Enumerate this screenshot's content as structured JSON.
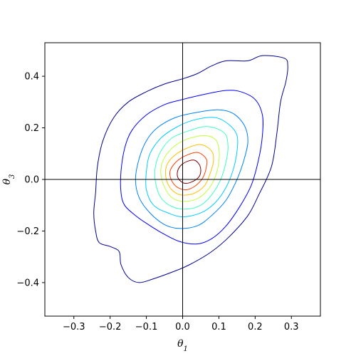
{
  "chart_data": {
    "type": "contour",
    "title": "",
    "xlabel": "θ1",
    "ylabel": "θ3",
    "xlabel_main": "θ",
    "xlabel_sub": "1",
    "ylabel_main": "θ",
    "ylabel_sub": "3",
    "xlim": [
      -0.38,
      0.38
    ],
    "ylim": [
      -0.53,
      0.53
    ],
    "xticks": [
      -0.3,
      -0.2,
      -0.1,
      0.0,
      0.1,
      0.2,
      0.3
    ],
    "xtick_labels": [
      "−0.3",
      "−0.2",
      "−0.1",
      "0.0",
      "0.1",
      "0.2",
      "0.3"
    ],
    "yticks": [
      -0.4,
      -0.2,
      0.0,
      0.2,
      0.4
    ],
    "ytick_labels": [
      "−0.4",
      "−0.2",
      "0.0",
      "0.2",
      "0.4"
    ],
    "reference_lines": {
      "x": 0.0,
      "y": 0.0
    },
    "grid": false,
    "legend": "none",
    "colormap": "jet",
    "contours": [
      {
        "level": 1,
        "color": "#00008f",
        "points": [
          [
            0.28,
            0.47
          ],
          [
            0.22,
            0.48
          ],
          [
            0.18,
            0.46
          ],
          [
            0.12,
            0.46
          ],
          [
            0.08,
            0.44
          ],
          [
            0.04,
            0.41
          ],
          [
            0.0,
            0.39
          ],
          [
            -0.05,
            0.37
          ],
          [
            -0.1,
            0.34
          ],
          [
            -0.15,
            0.3
          ],
          [
            -0.19,
            0.24
          ],
          [
            -0.22,
            0.15
          ],
          [
            -0.235,
            0.05
          ],
          [
            -0.24,
            -0.05
          ],
          [
            -0.245,
            -0.13
          ],
          [
            -0.24,
            -0.2
          ],
          [
            -0.23,
            -0.245
          ],
          [
            -0.2,
            -0.26
          ],
          [
            -0.175,
            -0.28
          ],
          [
            -0.17,
            -0.33
          ],
          [
            -0.15,
            -0.38
          ],
          [
            -0.12,
            -0.4
          ],
          [
            -0.08,
            -0.385
          ],
          [
            -0.03,
            -0.36
          ],
          [
            0.02,
            -0.33
          ],
          [
            0.08,
            -0.28
          ],
          [
            0.13,
            -0.22
          ],
          [
            0.18,
            -0.14
          ],
          [
            0.21,
            -0.06
          ],
          [
            0.245,
            0.05
          ],
          [
            0.26,
            0.18
          ],
          [
            0.27,
            0.3
          ],
          [
            0.285,
            0.38
          ],
          [
            0.29,
            0.44
          ],
          [
            0.28,
            0.47
          ]
        ]
      },
      {
        "level": 2,
        "color": "#0000ff",
        "points": [
          [
            0.12,
            0.345
          ],
          [
            0.06,
            0.33
          ],
          [
            0.0,
            0.31
          ],
          [
            -0.05,
            0.29
          ],
          [
            -0.1,
            0.25
          ],
          [
            -0.14,
            0.19
          ],
          [
            -0.16,
            0.12
          ],
          [
            -0.17,
            0.03
          ],
          [
            -0.17,
            -0.05
          ],
          [
            -0.16,
            -0.1
          ],
          [
            -0.13,
            -0.14
          ],
          [
            -0.1,
            -0.17
          ],
          [
            -0.06,
            -0.205
          ],
          [
            -0.01,
            -0.24
          ],
          [
            0.04,
            -0.25
          ],
          [
            0.08,
            -0.23
          ],
          [
            0.12,
            -0.18
          ],
          [
            0.16,
            -0.1
          ],
          [
            0.19,
            -0.02
          ],
          [
            0.21,
            0.08
          ],
          [
            0.22,
            0.17
          ],
          [
            0.22,
            0.25
          ],
          [
            0.2,
            0.31
          ],
          [
            0.16,
            0.34
          ],
          [
            0.12,
            0.345
          ]
        ]
      },
      {
        "level": 3,
        "color": "#0080ff",
        "points": [
          [
            0.1,
            0.27
          ],
          [
            0.04,
            0.26
          ],
          [
            -0.02,
            0.24
          ],
          [
            -0.07,
            0.2
          ],
          [
            -0.1,
            0.15
          ],
          [
            -0.12,
            0.08
          ],
          [
            -0.13,
            0.0
          ],
          [
            -0.12,
            -0.07
          ],
          [
            -0.09,
            -0.13
          ],
          [
            -0.05,
            -0.175
          ],
          [
            -0.01,
            -0.19
          ],
          [
            0.04,
            -0.18
          ],
          [
            0.08,
            -0.14
          ],
          [
            0.12,
            -0.08
          ],
          [
            0.15,
            0.0
          ],
          [
            0.17,
            0.08
          ],
          [
            0.18,
            0.15
          ],
          [
            0.17,
            0.21
          ],
          [
            0.14,
            0.255
          ],
          [
            0.1,
            0.27
          ]
        ]
      },
      {
        "level": 4,
        "color": "#00ccff",
        "points": [
          [
            0.09,
            0.24
          ],
          [
            0.03,
            0.23
          ],
          [
            -0.02,
            0.2
          ],
          [
            -0.06,
            0.16
          ],
          [
            -0.09,
            0.1
          ],
          [
            -0.1,
            0.03
          ],
          [
            -0.1,
            -0.04
          ],
          [
            -0.08,
            -0.1
          ],
          [
            -0.04,
            -0.13
          ],
          [
            0.0,
            -0.145
          ],
          [
            0.05,
            -0.13
          ],
          [
            0.09,
            -0.09
          ],
          [
            0.12,
            -0.03
          ],
          [
            0.14,
            0.04
          ],
          [
            0.15,
            0.11
          ],
          [
            0.15,
            0.17
          ],
          [
            0.13,
            0.21
          ],
          [
            0.09,
            0.24
          ]
        ]
      },
      {
        "level": 5,
        "color": "#40ffbf",
        "points": [
          [
            0.07,
            0.205
          ],
          [
            0.02,
            0.19
          ],
          [
            -0.03,
            0.16
          ],
          [
            -0.06,
            0.11
          ],
          [
            -0.075,
            0.05
          ],
          [
            -0.075,
            -0.01
          ],
          [
            -0.06,
            -0.07
          ],
          [
            -0.03,
            -0.105
          ],
          [
            0.01,
            -0.115
          ],
          [
            0.05,
            -0.1
          ],
          [
            0.08,
            -0.06
          ],
          [
            0.105,
            0.0
          ],
          [
            0.12,
            0.07
          ],
          [
            0.125,
            0.13
          ],
          [
            0.115,
            0.18
          ],
          [
            0.07,
            0.205
          ]
        ]
      },
      {
        "level": 6,
        "color": "#bfff40",
        "points": [
          [
            0.06,
            0.17
          ],
          [
            0.01,
            0.155
          ],
          [
            -0.03,
            0.12
          ],
          [
            -0.055,
            0.07
          ],
          [
            -0.06,
            0.02
          ],
          [
            -0.05,
            -0.03
          ],
          [
            -0.03,
            -0.07
          ],
          [
            0.0,
            -0.085
          ],
          [
            0.04,
            -0.075
          ],
          [
            0.07,
            -0.04
          ],
          [
            0.09,
            0.01
          ],
          [
            0.1,
            0.07
          ],
          [
            0.1,
            0.12
          ],
          [
            0.09,
            0.155
          ],
          [
            0.06,
            0.17
          ]
        ]
      },
      {
        "level": 7,
        "color": "#ffbf00",
        "points": [
          [
            0.05,
            0.135
          ],
          [
            0.01,
            0.12
          ],
          [
            -0.025,
            0.09
          ],
          [
            -0.045,
            0.05
          ],
          [
            -0.045,
            0.0
          ],
          [
            -0.03,
            -0.04
          ],
          [
            -0.005,
            -0.06
          ],
          [
            0.03,
            -0.055
          ],
          [
            0.06,
            -0.025
          ],
          [
            0.075,
            0.02
          ],
          [
            0.085,
            0.07
          ],
          [
            0.08,
            0.11
          ],
          [
            0.05,
            0.135
          ]
        ]
      },
      {
        "level": 8,
        "color": "#ff4000",
        "points": [
          [
            0.04,
            0.105
          ],
          [
            0.005,
            0.09
          ],
          [
            -0.02,
            0.065
          ],
          [
            -0.035,
            0.03
          ],
          [
            -0.03,
            -0.005
          ],
          [
            -0.015,
            -0.03
          ],
          [
            0.01,
            -0.04
          ],
          [
            0.035,
            -0.025
          ],
          [
            0.055,
            0.005
          ],
          [
            0.065,
            0.045
          ],
          [
            0.065,
            0.08
          ],
          [
            0.04,
            0.105
          ]
        ]
      },
      {
        "level": 9,
        "color": "#800000",
        "points": [
          [
            0.03,
            0.075
          ],
          [
            0.005,
            0.065
          ],
          [
            -0.01,
            0.045
          ],
          [
            -0.015,
            0.02
          ],
          [
            -0.01,
            0.0
          ],
          [
            0.005,
            -0.015
          ],
          [
            0.025,
            -0.01
          ],
          [
            0.045,
            0.01
          ],
          [
            0.05,
            0.035
          ],
          [
            0.045,
            0.06
          ],
          [
            0.03,
            0.075
          ]
        ]
      }
    ]
  }
}
